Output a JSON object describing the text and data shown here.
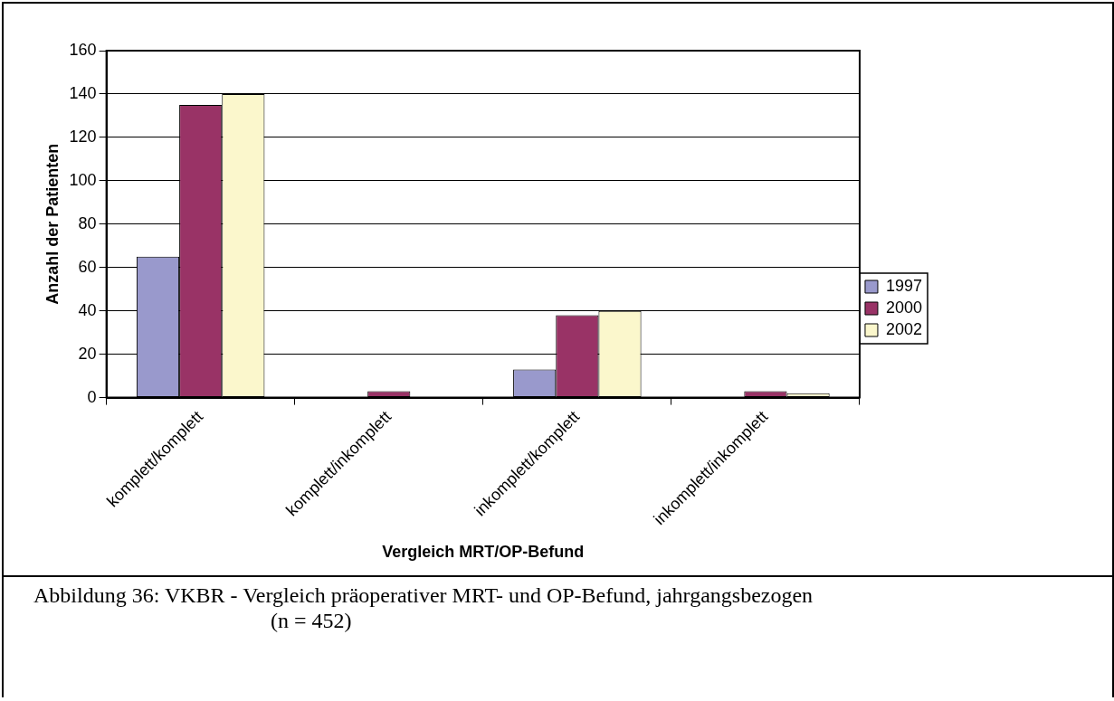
{
  "chart_data": {
    "type": "bar",
    "xlabel": "Vergleich MRT/OP-Befund",
    "ylabel": "Anzahl der Patienten",
    "categories": [
      "komplett/komplett",
      "komplett/inkomplett",
      "inkomplett/komplett",
      "inkomplett/inkomplett"
    ],
    "series": [
      {
        "name": "1997",
        "color": "#9999cc",
        "values": [
          65,
          0,
          13,
          0
        ]
      },
      {
        "name": "2000",
        "color": "#993366",
        "values": [
          135,
          3,
          38,
          3
        ]
      },
      {
        "name": "2002",
        "color": "#fbf7cc",
        "values": [
          140,
          0,
          40,
          2
        ]
      }
    ],
    "ylim": [
      0,
      160
    ],
    "yticks": [
      0,
      20,
      40,
      60,
      80,
      100,
      120,
      140,
      160
    ],
    "grid": "y",
    "legend": "right",
    "annotations": [
      "Abbildung 36: VKBR - Vergleich präoperativer MRT- und OP-Befund, jahrgangsbezogen",
      "(n = 452)"
    ]
  }
}
